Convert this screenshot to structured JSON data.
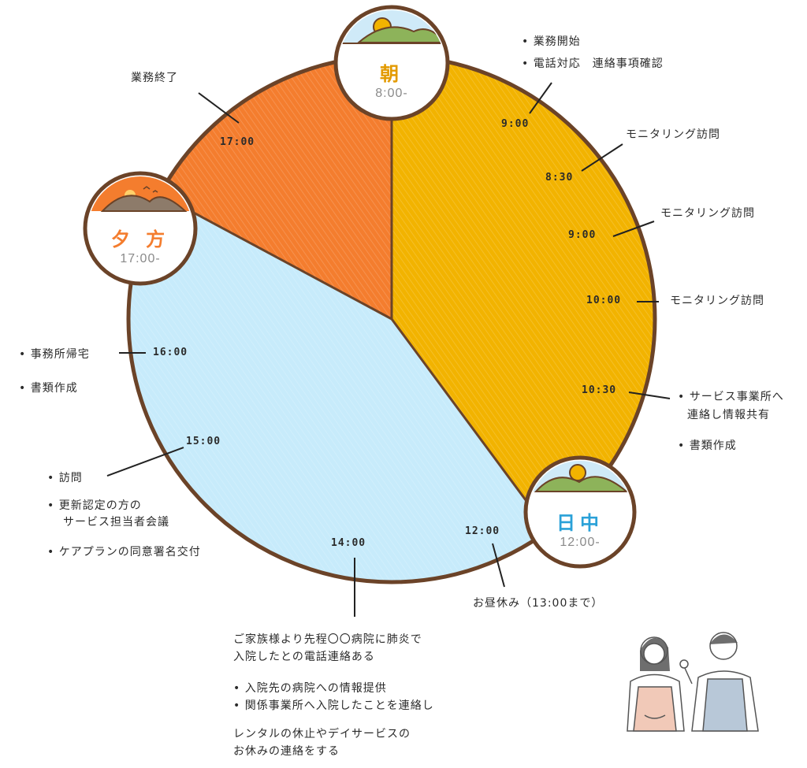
{
  "colors": {
    "morning": "#f2b300",
    "evening": "#f47d2e",
    "afternoon": "#c7ebfb",
    "outline": "#6b4328",
    "morning_label": "#e39a00",
    "evening_label": "#f47d2e",
    "noon_label": "#2aa1d8"
  },
  "badges": {
    "morning": {
      "label": "朝",
      "time": "8:00-",
      "icon": "sunrise-hill-icon"
    },
    "evening": {
      "label": "夕 方",
      "time": "17:00-",
      "icon": "sunset-hills-icon"
    },
    "noon": {
      "label": "日中",
      "time": "12:00-",
      "icon": "sun-hills-icon"
    }
  },
  "times": {
    "t0900a": "9:00",
    "t0830": "8:30",
    "t0900b": "9:00",
    "t1000": "10:00",
    "t1030": "10:30",
    "t1200": "12:00",
    "t1400": "14:00",
    "t1500": "15:00",
    "t1600": "16:00",
    "t1700": "17:00"
  },
  "notes": {
    "work_end": "業務終了",
    "work_start": "• 業務開始",
    "phone": "• 電話対応　連絡事項確認",
    "monitoring1": "モニタリング訪問",
    "monitoring2": "モニタリング訪問",
    "monitoring3": "モニタリング訪問",
    "service_contact_1": "• サービス事業所へ",
    "service_contact_2": "連絡し情報共有",
    "docs_right": "• 書類作成",
    "office_return": "• 事務所帰宅",
    "docs_left": "• 書類作成",
    "visit": "• 訪問",
    "renewal_1": "• 更新認定の方の",
    "renewal_2": "サービス担当者会議",
    "careplan": "• ケアプランの同意署名交付",
    "lunch": "お昼休み（13:00まで）",
    "family_1": "ご家族様より先程〇〇病院に肺炎で",
    "family_2": "入院したとの電話連絡ある",
    "hospital_info": "• 入院先の病院への情報提供",
    "related_office": "• 関係事業所へ入院したことを連絡し",
    "rental_1": "レンタルの休止やデイサービスの",
    "rental_2": "お休みの連絡をする"
  },
  "illustration": "two-caregivers-icon"
}
